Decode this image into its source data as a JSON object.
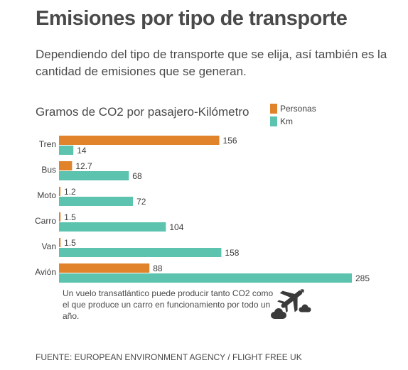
{
  "header": {
    "title": "Emisiones por tipo de transporte",
    "subtitle": "Dependiendo del tipo de transporte que se elija, así también es la cantidad de emisiones que se generan."
  },
  "chart_data": {
    "type": "bar",
    "orientation": "horizontal",
    "title": "Gramos de CO2 por pasajero-Kilómetro",
    "categories": [
      "Tren",
      "Bus",
      "Moto",
      "Carro",
      "Van",
      "Avión"
    ],
    "series": [
      {
        "name": "Personas",
        "color": "#e0832b",
        "values": [
          156,
          12.7,
          1.2,
          1.5,
          1.5,
          88
        ],
        "labels": [
          "156",
          "12.7",
          "1.2",
          "1.5",
          "1.5",
          "88"
        ]
      },
      {
        "name": "Km",
        "color": "#5cc3ae",
        "values": [
          14,
          68,
          72,
          104,
          158,
          285
        ],
        "labels": [
          "14",
          "68",
          "72",
          "104",
          "158",
          "285"
        ]
      }
    ],
    "xlim": [
      0,
      285
    ],
    "grid": false,
    "legend_position": "top-right"
  },
  "note": "Un vuelo transatlántico puede producir tanto CO2 como el que produce un carro en funcionamiento por todo un año.",
  "note_icon": "airplane-icon",
  "footer": "FUENTE: EUROPEAN ENVIRONMENT AGENCY / FLIGHT FREE UK"
}
